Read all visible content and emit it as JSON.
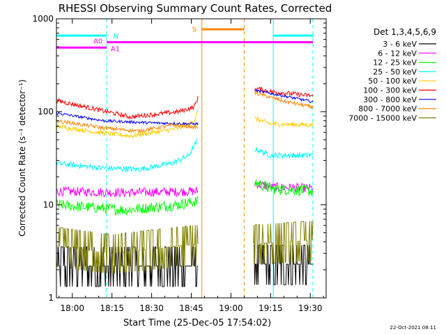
{
  "chart_data": {
    "type": "line",
    "title": "RHESSI Observing Summary Count Rates, Corrected",
    "xlabel": "Start Time (25-Dec-05 17:54:02)",
    "ylabel": "Corrected Count Rate (s⁻¹ detector⁻¹)",
    "yscale": "log",
    "ylim": [
      1,
      1000
    ],
    "xlim_minutes": [
      -6,
      96
    ],
    "x_ticks": [
      {
        "minute": 0,
        "label": "18:00"
      },
      {
        "minute": 15,
        "label": "18:15"
      },
      {
        "minute": 30,
        "label": "18:30"
      },
      {
        "minute": 45,
        "label": "18:45"
      },
      {
        "minute": 60,
        "label": "19:00"
      },
      {
        "minute": 75,
        "label": "19:15"
      },
      {
        "minute": 90,
        "label": "19:30"
      }
    ],
    "y_ticks": [
      {
        "value": 1,
        "label": "1"
      },
      {
        "value": 10,
        "label": "10"
      },
      {
        "value": 100,
        "label": "100"
      },
      {
        "value": 1000,
        "label": "1000"
      }
    ],
    "legend_title": "Det 1,3,4,5,6,9",
    "legend_position": "right",
    "data_gap_minutes": [
      47.5,
      68.5
    ],
    "series": [
      {
        "name": "3 - 6 keV",
        "color": "#000000",
        "noise": 0.45,
        "seg1": [
          [
            -6,
            2.2
          ],
          [
            47.5,
            2.2
          ]
        ],
        "seg2": [
          [
            68.5,
            2.3
          ],
          [
            91,
            2.3
          ]
        ]
      },
      {
        "name": "6 - 12 keV",
        "color": "#ff00ff",
        "noise": 0.05,
        "seg1": [
          [
            -6,
            14
          ],
          [
            20,
            13.5
          ],
          [
            47.5,
            14
          ]
        ],
        "seg2": [
          [
            69,
            17
          ],
          [
            75,
            15.5
          ],
          [
            91,
            15
          ]
        ]
      },
      {
        "name": "12 - 25 keV",
        "color": "#00ff00",
        "noise": 0.06,
        "seg1": [
          [
            -6,
            10
          ],
          [
            20,
            8.8
          ],
          [
            40,
            10
          ],
          [
            47.5,
            11
          ]
        ],
        "seg2": [
          [
            69,
            17.5
          ],
          [
            75,
            15
          ],
          [
            91,
            14
          ]
        ]
      },
      {
        "name": "25 - 50 keV",
        "color": "#00ffff",
        "noise": 0.03,
        "seg1": [
          [
            -6,
            28
          ],
          [
            10,
            25
          ],
          [
            25,
            24
          ],
          [
            38,
            28
          ],
          [
            44,
            34
          ],
          [
            47.5,
            50
          ]
        ],
        "seg2": [
          [
            69,
            40
          ],
          [
            75,
            34
          ],
          [
            91,
            34
          ]
        ]
      },
      {
        "name": "50 - 100 keV",
        "color": "#ffcc00",
        "noise": 0.025,
        "seg1": [
          [
            -6,
            70
          ],
          [
            10,
            60
          ],
          [
            22,
            55
          ],
          [
            40,
            66
          ],
          [
            46,
            78
          ],
          [
            47.5,
            105
          ]
        ],
        "seg2": [
          [
            69,
            85
          ],
          [
            75,
            74
          ],
          [
            91,
            72
          ]
        ]
      },
      {
        "name": "100 - 300 keV",
        "color": "#ff0000",
        "noise": 0.025,
        "seg1": [
          [
            -6,
            132
          ],
          [
            10,
            105
          ],
          [
            22,
            88
          ],
          [
            40,
            100
          ],
          [
            46,
            112
          ],
          [
            47.5,
            140
          ]
        ],
        "seg2": [
          [
            69,
            180
          ],
          [
            75,
            165
          ],
          [
            91,
            148
          ]
        ]
      },
      {
        "name": "300 - 800 keV",
        "color": "#0000ff",
        "noise": 0.015,
        "seg1": [
          [
            -6,
            97
          ],
          [
            12,
            80
          ],
          [
            30,
            76
          ],
          [
            47.5,
            74
          ]
        ],
        "seg2": [
          [
            69,
            170
          ],
          [
            80,
            148
          ],
          [
            91,
            128
          ]
        ]
      },
      {
        "name": "800 - 7000 keV",
        "color": "#ff8800",
        "noise": 0.02,
        "seg1": [
          [
            -6,
            80
          ],
          [
            12,
            67
          ],
          [
            25,
            62
          ],
          [
            38,
            72
          ],
          [
            47.5,
            68
          ]
        ],
        "seg2": [
          [
            69,
            160
          ],
          [
            80,
            130
          ],
          [
            91,
            112
          ]
        ]
      },
      {
        "name": "7000 - 15000 keV",
        "color": "#808000",
        "noise": 0.35,
        "seg1": [
          [
            -6,
            3.6
          ],
          [
            15,
            3.0
          ],
          [
            47.5,
            3.8
          ]
        ],
        "seg2": [
          [
            68.5,
            3.8
          ],
          [
            91,
            4.2
          ]
        ]
      }
    ],
    "flags": [
      {
        "label": "N",
        "color": "#00ffff",
        "segments": [
          [
            -6,
            13
          ],
          [
            76,
            91
          ]
        ],
        "level": 660
      },
      {
        "label": "S",
        "color": "#ff8800",
        "segments": [
          [
            49,
            65
          ]
        ],
        "level": 770
      },
      {
        "label": "A0",
        "color": "#ff00ff",
        "segments": [
          [
            13,
            91
          ]
        ],
        "level": 560
      },
      {
        "label": "A1",
        "color": "#ff00ff",
        "segments": [
          [
            -6,
            13
          ]
        ],
        "level": 490
      }
    ],
    "vertical_markers": [
      {
        "minute": -6,
        "color": "#00ffff",
        "style": "dashed"
      },
      {
        "minute": 13,
        "color": "#00ffff",
        "style": "dashed"
      },
      {
        "minute": 49,
        "color": "#ff8800",
        "style": "solid"
      },
      {
        "minute": 65,
        "color": "#ff8800",
        "style": "dashed"
      },
      {
        "minute": 76,
        "color": "#00ffff",
        "style": "solid"
      },
      {
        "minute": 91,
        "color": "#00ffff",
        "style": "dashed"
      }
    ]
  },
  "footer": {
    "timestamp": "22-Oct-2021 08:11"
  }
}
